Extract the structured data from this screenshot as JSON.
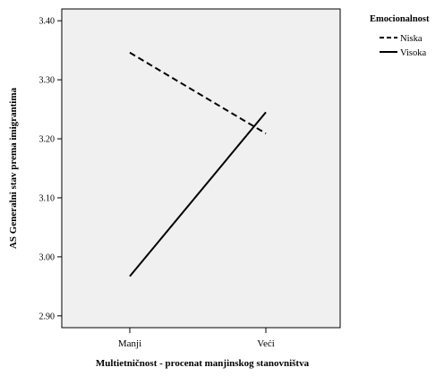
{
  "chart_data": {
    "type": "line",
    "title": "",
    "xlabel": "Multietničnost -  procenat manjinskog stanovništva",
    "ylabel": "AS Generalni stav prema imigrantima",
    "categories": [
      "Manji",
      "Veći"
    ],
    "ylim": [
      2.88,
      3.42
    ],
    "yticks": [
      2.9,
      3.0,
      3.1,
      3.2,
      3.3,
      3.4
    ],
    "ytick_labels": [
      "2.90",
      "3.00",
      "3.10",
      "3.20",
      "3.30",
      "3.40"
    ],
    "grid": false,
    "plot_background": "#f0f0f0",
    "legend": {
      "title": "Emocionalnost",
      "position": "top-right-outside"
    },
    "series": [
      {
        "name": "Niska",
        "values": [
          3.346,
          3.209
        ],
        "style": "dashed",
        "color": "#000000"
      },
      {
        "name": "Visoka",
        "values": [
          2.967,
          3.245
        ],
        "style": "solid",
        "color": "#000000"
      }
    ]
  }
}
